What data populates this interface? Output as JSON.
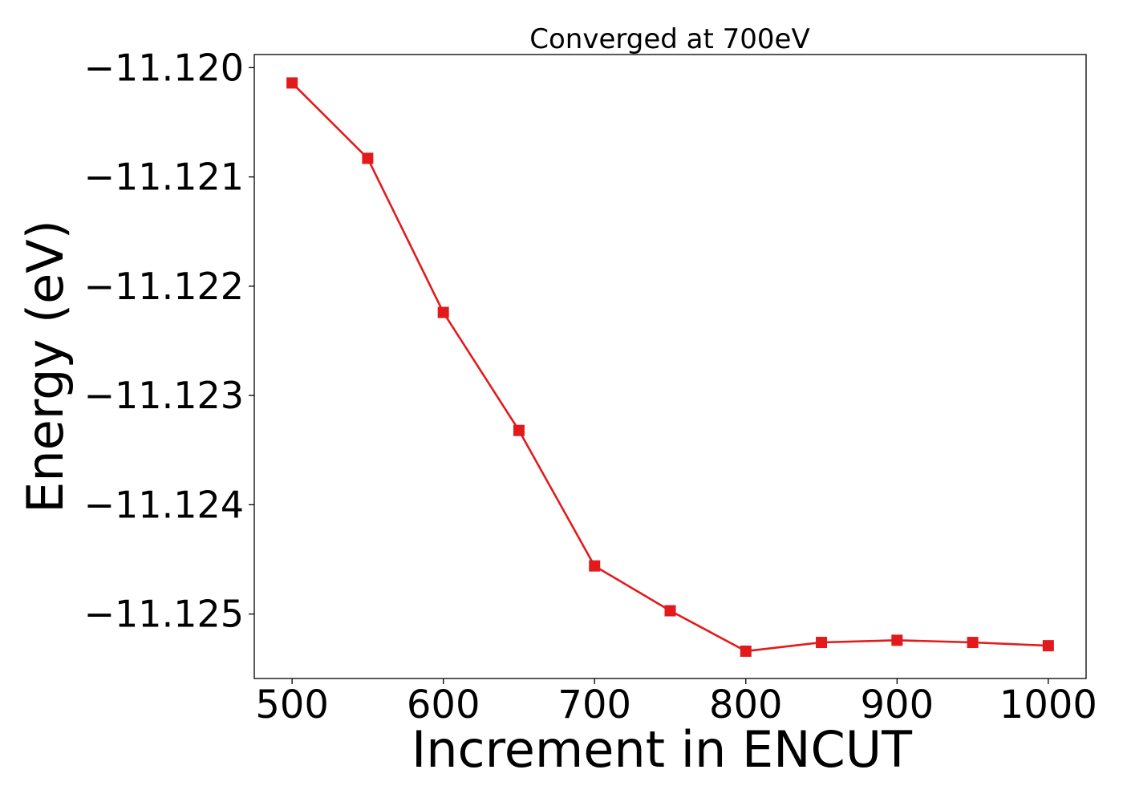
{
  "chart_data": {
    "type": "line",
    "title": "Converged at 700eV",
    "xlabel": "Increment in ENCUT",
    "ylabel": "Energy (eV)",
    "xlim": [
      475,
      1025
    ],
    "ylim": [
      -11.12559,
      -11.11988
    ],
    "x_ticks": [
      500,
      600,
      700,
      800,
      900,
      1000
    ],
    "y_ticks": [
      -11.125,
      -11.124,
      -11.123,
      -11.122,
      -11.121,
      -11.12
    ],
    "y_tick_labels": [
      "−11.125",
      "−11.124",
      "−11.123",
      "−11.122",
      "−11.121",
      "−11.120"
    ],
    "grid": false,
    "series": [
      {
        "color": "#e31a1c",
        "marker": "square",
        "x": [
          500,
          550,
          600,
          650,
          700,
          750,
          800,
          850,
          900,
          950,
          1000
        ],
        "y": [
          -11.12014,
          -11.12083,
          -11.12224,
          -11.12332,
          -11.12456,
          -11.12497,
          -11.12534,
          -11.12526,
          -11.12524,
          -11.12526,
          -11.12529
        ]
      }
    ]
  }
}
